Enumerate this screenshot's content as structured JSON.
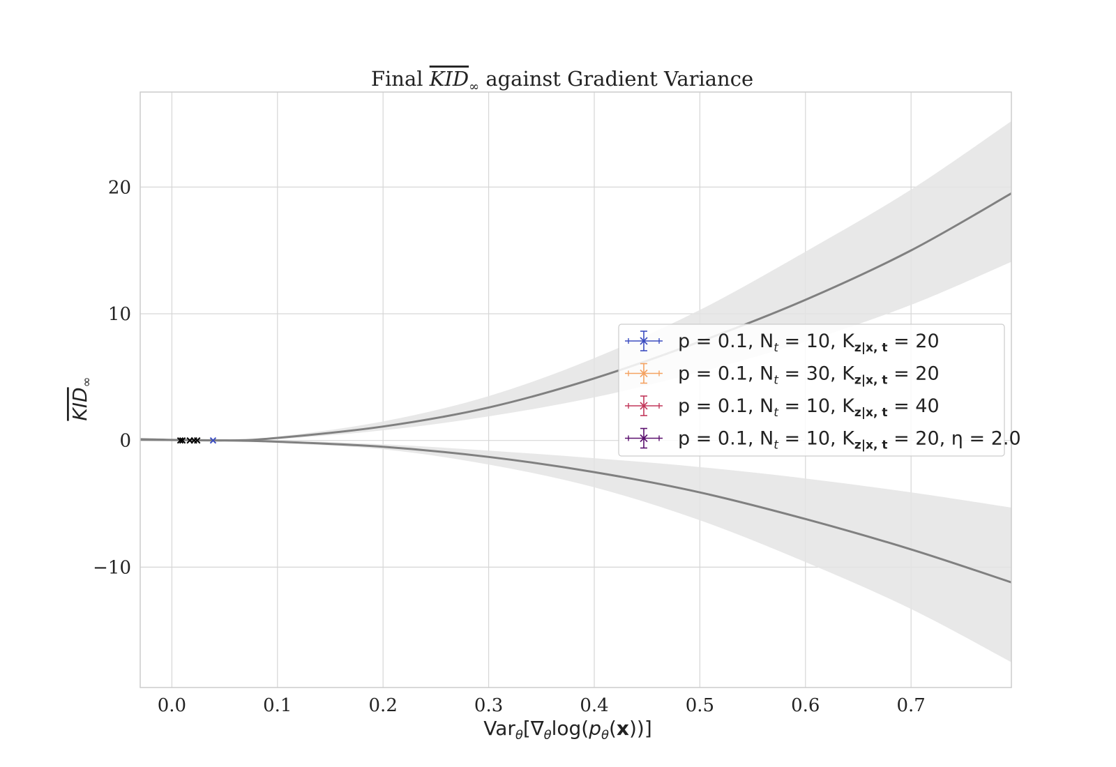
{
  "chart_data": {
    "type": "scatter",
    "title": "Final KID∞ against Gradient Variance",
    "title_parts": {
      "prefix": "Final ",
      "kid": "KID",
      "sub": "∞",
      "suffix": " against Gradient Variance"
    },
    "xlabel": "Var_θ[∇_θ log(p_θ(x))]",
    "xlabel_parts": {
      "var": "Var",
      "sub1": "θ",
      "open": "[∇",
      "sub2": "θ",
      "log": "log(",
      "p": "p",
      "sub3": "θ",
      "x": "x",
      "close": "))]"
    },
    "ylabel": "KID∞",
    "ylabel_parts": {
      "kid": "KID",
      "sub": "∞"
    },
    "xlim": [
      -0.03,
      0.795
    ],
    "ylim": [
      -19.5,
      27.5
    ],
    "xticks": [
      0.0,
      0.1,
      0.2,
      0.3,
      0.4,
      0.5,
      0.6,
      0.7
    ],
    "xtick_labels": [
      "0.0",
      "0.1",
      "0.2",
      "0.3",
      "0.4",
      "0.5",
      "0.6",
      "0.7"
    ],
    "yticks": [
      -10,
      0,
      10,
      20
    ],
    "ytick_labels": [
      "−10",
      "0",
      "10",
      "20"
    ],
    "grid": true,
    "legend_placement": "center-right",
    "fit_curves": [
      {
        "x": [
          -0.03,
          0.05,
          0.1,
          0.2,
          0.3,
          0.4,
          0.5,
          0.6,
          0.7,
          0.795
        ],
        "y": [
          0.1,
          0.0,
          0.2,
          1.1,
          2.6,
          4.9,
          7.8,
          11.1,
          15.0,
          19.5
        ],
        "band_upper": [
          0.15,
          0.05,
          0.3,
          1.5,
          3.5,
          6.5,
          10.3,
          14.9,
          19.8,
          25.2
        ],
        "band_lower": [
          0.05,
          -0.05,
          0.1,
          0.8,
          1.9,
          3.4,
          5.4,
          7.8,
          10.7,
          14.1
        ]
      },
      {
        "x": [
          -0.03,
          0.05,
          0.1,
          0.2,
          0.3,
          0.4,
          0.5,
          0.6,
          0.7,
          0.795
        ],
        "y": [
          0.05,
          0.0,
          -0.1,
          -0.5,
          -1.3,
          -2.5,
          -4.1,
          -6.2,
          -8.6,
          -11.2
        ],
        "band_upper": [
          0.1,
          0.05,
          0.0,
          -0.3,
          -0.8,
          -1.4,
          -2.1,
          -3.0,
          -4.1,
          -5.3
        ],
        "band_lower": [
          0.0,
          -0.05,
          -0.2,
          -0.7,
          -1.9,
          -3.7,
          -6.3,
          -9.6,
          -13.3,
          -17.5
        ]
      }
    ],
    "series": [
      {
        "name": "p = 0.1, N_t = 10, K_{z|x},t = 20",
        "color": "#3b4cc0",
        "marker": "x",
        "points": [
          {
            "x": 0.039,
            "y": 0.0
          }
        ]
      },
      {
        "name": "p = 0.1, N_t = 30, K_{z|x},t = 20",
        "color": "#f4a261",
        "marker": "x",
        "points": []
      },
      {
        "name": "p = 0.1, N_t = 10, K_{z|x},t = 40",
        "color": "#c2375a",
        "marker": "x",
        "points": []
      },
      {
        "name": "p = 0.1, N_t = 10, K_{z|x},t = 20, η = 2.0",
        "color": "#5a0f6e",
        "marker": "x",
        "points": []
      },
      {
        "name": "",
        "color": "#000000",
        "marker": "x",
        "points": [
          {
            "x": 0.008,
            "y": 0.0
          },
          {
            "x": 0.01,
            "y": 0.0
          },
          {
            "x": 0.017,
            "y": 0.0
          },
          {
            "x": 0.021,
            "y": 0.0
          },
          {
            "x": 0.024,
            "y": 0.0
          }
        ]
      }
    ],
    "legend": [
      {
        "base": "p = 0.1, N",
        "nsub": "t",
        "mid": " = 10, K",
        "ksub": "z|x, t",
        "end": " = 20"
      },
      {
        "base": "p = 0.1, N",
        "nsub": "t",
        "mid": " = 30, K",
        "ksub": "z|x, t",
        "end": " = 20"
      },
      {
        "base": "p = 0.1, N",
        "nsub": "t",
        "mid": " = 10, K",
        "ksub": "z|x, t",
        "end": " = 40"
      },
      {
        "base": "p = 0.1, N",
        "nsub": "t",
        "mid": " = 10, K",
        "ksub": "z|x, t",
        "end": " = 20, η = 2.0"
      }
    ]
  }
}
